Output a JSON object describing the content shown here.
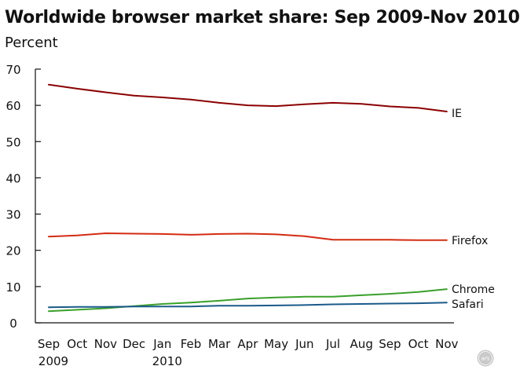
{
  "chart_data": {
    "type": "line",
    "title": "Worldwide browser market share: Sep 2009-Nov 2010",
    "ylabel": "Percent",
    "xlabel": "",
    "ylim": [
      0,
      70
    ],
    "yticks": [
      0,
      10,
      20,
      30,
      40,
      50,
      60,
      70
    ],
    "grid": false,
    "legend": "inline labels at right end of each line",
    "categories": [
      "Sep",
      "Oct",
      "Nov",
      "Dec",
      "Jan",
      "Feb",
      "Mar",
      "Apr",
      "May",
      "Jun",
      "Jul",
      "Aug",
      "Sep",
      "Oct",
      "Nov"
    ],
    "year_labels": [
      {
        "index": 0,
        "text": "2009"
      },
      {
        "index": 4,
        "text": "2010"
      }
    ],
    "series": [
      {
        "name": "IE",
        "color": "#8b0000",
        "values": [
          65.7,
          64.6,
          63.6,
          62.7,
          62.2,
          61.6,
          60.7,
          60.0,
          59.8,
          60.3,
          60.7,
          60.4,
          59.7,
          59.3,
          58.3
        ]
      },
      {
        "name": "Firefox",
        "color": "#d42b11",
        "values": [
          23.8,
          24.1,
          24.7,
          24.6,
          24.5,
          24.3,
          24.5,
          24.6,
          24.4,
          23.9,
          22.9,
          22.9,
          22.9,
          22.8,
          22.8
        ]
      },
      {
        "name": "Chrome",
        "color": "#3aa02a",
        "values": [
          3.2,
          3.6,
          4.0,
          4.6,
          5.2,
          5.6,
          6.1,
          6.7,
          7.0,
          7.2,
          7.2,
          7.6,
          8.0,
          8.5,
          9.3
        ]
      },
      {
        "name": "Safari",
        "color": "#1a5a8a",
        "values": [
          4.3,
          4.4,
          4.4,
          4.5,
          4.5,
          4.5,
          4.7,
          4.7,
          4.8,
          4.9,
          5.1,
          5.2,
          5.3,
          5.4,
          5.6
        ]
      }
    ]
  },
  "watermark": {
    "text": "ars",
    "icon": "ars-technica-logo-icon"
  }
}
